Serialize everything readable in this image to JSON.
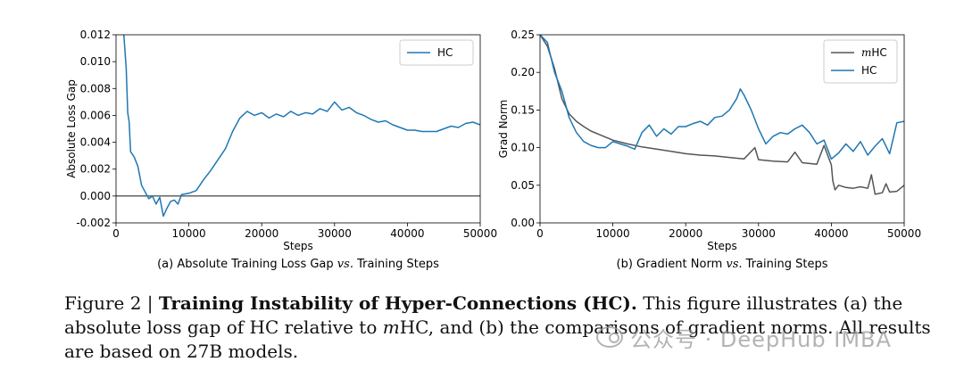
{
  "chart_data": [
    {
      "type": "line",
      "xlabel": "Steps",
      "ylabel": "Absolute Loss Gap",
      "xlim": [
        0,
        50000
      ],
      "ylim": [
        -0.002,
        0.012
      ],
      "xticks": [
        0,
        10000,
        20000,
        30000,
        40000,
        50000
      ],
      "xtick_labels": [
        "0",
        "10000",
        "20000",
        "30000",
        "40000",
        "50000"
      ],
      "yticks": [
        -0.002,
        0.0,
        0.002,
        0.004,
        0.006,
        0.008,
        0.01,
        0.012
      ],
      "ytick_labels": [
        "-0.002",
        "0.000",
        "0.002",
        "0.004",
        "0.006",
        "0.008",
        "0.010",
        "0.012"
      ],
      "grid": false,
      "reference_line": 0.0,
      "legend_position": "top-right",
      "subcaption": "(a) Absolute Training Loss Gap vs. Training Steps",
      "series": [
        {
          "name": "HC",
          "color": "#1f77b4",
          "x": [
            1000,
            1200,
            1400,
            1600,
            1800,
            2000,
            2500,
            3000,
            3500,
            4000,
            4500,
            5000,
            5500,
            6000,
            6500,
            7000,
            7500,
            8000,
            8500,
            9000,
            10000,
            11000,
            12000,
            13000,
            14000,
            15000,
            16000,
            17000,
            18000,
            19000,
            20000,
            21000,
            22000,
            23000,
            24000,
            25000,
            26000,
            27000,
            28000,
            29000,
            30000,
            31000,
            32000,
            33000,
            34000,
            35000,
            36000,
            37000,
            38000,
            39000,
            40000,
            41000,
            42000,
            43000,
            44000,
            45000,
            46000,
            47000,
            48000,
            49000,
            50000
          ],
          "values": [
            0.0125,
            0.011,
            0.0095,
            0.0062,
            0.0055,
            0.0033,
            0.0029,
            0.0022,
            0.0008,
            0.0003,
            -0.0002,
            0.0,
            -0.0006,
            -0.0001,
            -0.0015,
            -0.0009,
            -0.0004,
            -0.0003,
            -0.0006,
            0.0001,
            0.0002,
            0.0004,
            0.0012,
            0.0019,
            0.0027,
            0.0035,
            0.0048,
            0.0058,
            0.0063,
            0.006,
            0.0062,
            0.0058,
            0.0061,
            0.0059,
            0.0063,
            0.006,
            0.0062,
            0.0061,
            0.0065,
            0.0063,
            0.007,
            0.0064,
            0.0066,
            0.0062,
            0.006,
            0.0057,
            0.0055,
            0.0056,
            0.0053,
            0.0051,
            0.0049,
            0.0049,
            0.0048,
            0.0048,
            0.0048,
            0.005,
            0.0052,
            0.0051,
            0.0054,
            0.0055,
            0.0053
          ]
        }
      ]
    },
    {
      "type": "line",
      "xlabel": "Steps",
      "ylabel": "Grad Norm",
      "xlim": [
        0,
        50000
      ],
      "ylim": [
        0.0,
        0.25
      ],
      "xticks": [
        0,
        10000,
        20000,
        30000,
        40000,
        50000
      ],
      "xtick_labels": [
        "0",
        "10000",
        "20000",
        "30000",
        "40000",
        "50000"
      ],
      "yticks": [
        0.0,
        0.05,
        0.1,
        0.15,
        0.2,
        0.25
      ],
      "ytick_labels": [
        "0.00",
        "0.05",
        "0.10",
        "0.15",
        "0.20",
        "0.25"
      ],
      "grid": false,
      "legend_position": "top-right",
      "subcaption": "(b) Gradient Norm vs. Training Steps",
      "series": [
        {
          "name": "mHC",
          "color": "#555555",
          "x": [
            0,
            1000,
            2000,
            3000,
            4000,
            5000,
            6000,
            7000,
            8000,
            9000,
            10000,
            12000,
            14000,
            16000,
            18000,
            20000,
            22000,
            24000,
            26000,
            28000,
            29500,
            30000,
            32000,
            34000,
            35000,
            36000,
            38000,
            39000,
            40000,
            40200,
            40500,
            41000,
            42000,
            43000,
            44000,
            45000,
            45500,
            46000,
            47000,
            47500,
            48000,
            49000,
            50000
          ],
          "values": [
            0.25,
            0.235,
            0.205,
            0.165,
            0.145,
            0.135,
            0.128,
            0.122,
            0.118,
            0.114,
            0.11,
            0.105,
            0.101,
            0.098,
            0.095,
            0.092,
            0.09,
            0.089,
            0.087,
            0.085,
            0.1,
            0.084,
            0.082,
            0.081,
            0.094,
            0.08,
            0.078,
            0.103,
            0.077,
            0.056,
            0.044,
            0.05,
            0.047,
            0.046,
            0.048,
            0.046,
            0.064,
            0.038,
            0.04,
            0.052,
            0.041,
            0.042,
            0.05
          ]
        },
        {
          "name": "HC",
          "color": "#1f77b4",
          "x": [
            0,
            1000,
            2000,
            3000,
            4000,
            5000,
            6000,
            7000,
            8000,
            9000,
            10000,
            11000,
            12000,
            13000,
            14000,
            15000,
            16000,
            17000,
            18000,
            19000,
            20000,
            21000,
            22000,
            23000,
            24000,
            25000,
            26000,
            27000,
            27500,
            28000,
            28500,
            29000,
            30000,
            31000,
            32000,
            33000,
            34000,
            35000,
            36000,
            37000,
            38000,
            39000,
            40000,
            41000,
            42000,
            43000,
            44000,
            45000,
            46000,
            47000,
            48000,
            49000,
            50000
          ],
          "values": [
            0.25,
            0.24,
            0.2,
            0.175,
            0.14,
            0.12,
            0.108,
            0.103,
            0.1,
            0.1,
            0.108,
            0.105,
            0.102,
            0.098,
            0.12,
            0.13,
            0.115,
            0.125,
            0.118,
            0.128,
            0.128,
            0.132,
            0.135,
            0.13,
            0.14,
            0.142,
            0.15,
            0.165,
            0.178,
            0.17,
            0.16,
            0.15,
            0.125,
            0.105,
            0.115,
            0.12,
            0.118,
            0.125,
            0.13,
            0.12,
            0.105,
            0.11,
            0.085,
            0.093,
            0.105,
            0.095,
            0.108,
            0.09,
            0.102,
            0.112,
            0.092,
            0.133,
            0.135
          ]
        }
      ]
    }
  ],
  "caption": {
    "label": "Figure 2 | ",
    "title": "Training Instability of Hyper-Connections (HC).",
    "text_1": " This figure illustrates (a) the absolute loss gap of HC relative to ",
    "m_italic": "m",
    "text_2": "HC, and (b) the comparisons of gradient norms. All results are based on 27B models."
  },
  "watermark": "公众号 · DeepHub IMBA"
}
